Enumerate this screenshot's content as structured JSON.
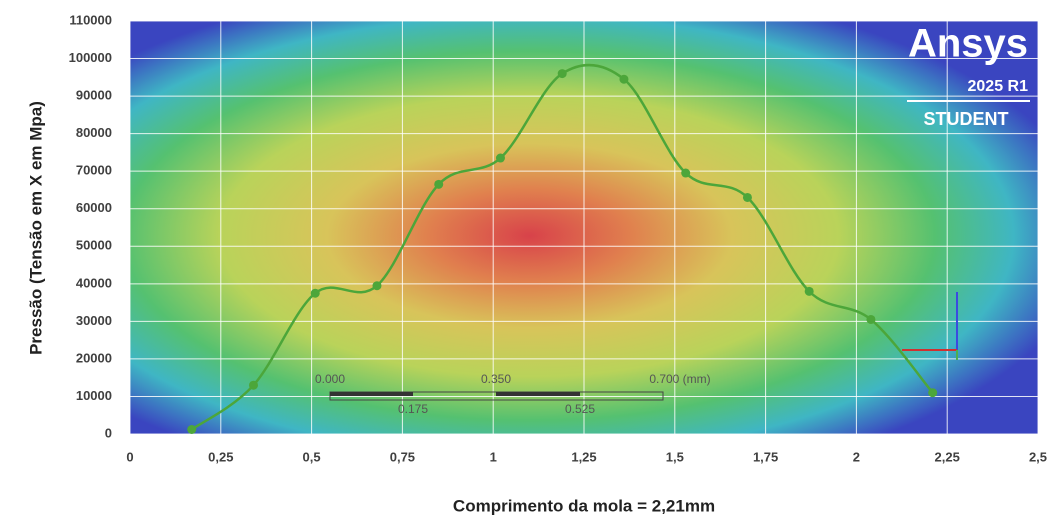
{
  "chart_data": {
    "type": "line",
    "x_label": "Comprimento da mola = 2,21mm",
    "y_label": "Pressão (Tensão em X em Mpa)",
    "x": [
      0.17,
      0.34,
      0.51,
      0.68,
      0.85,
      1.02,
      1.19,
      1.36,
      1.53,
      1.7,
      1.87,
      2.04,
      2.21
    ],
    "series": [
      {
        "color": "#4ca63a",
        "values": [
          1200,
          13000,
          37500,
          39500,
          66500,
          73500,
          96000,
          94500,
          69500,
          63000,
          38000,
          30500,
          11000
        ]
      }
    ],
    "xlim": [
      0,
      2.5
    ],
    "xticks": [
      0,
      {
        "value": 0.25,
        "label": "0,25"
      },
      {
        "value": 0.5,
        "label": "0,5"
      },
      {
        "value": 0.75,
        "label": "0,75"
      },
      1,
      {
        "value": 1.25,
        "label": "1,25"
      },
      {
        "value": 1.5,
        "label": "1,5"
      },
      {
        "value": 1.75,
        "label": "1,75"
      },
      2,
      {
        "value": 2.25,
        "label": "2,25"
      },
      {
        "value": 2.5,
        "label": "2,5"
      }
    ],
    "ylim": [
      0,
      110000
    ],
    "yticks": [
      0,
      10000,
      20000,
      30000,
      40000,
      50000,
      60000,
      70000,
      80000,
      90000,
      100000,
      110000
    ],
    "grid": true
  },
  "overlay": {
    "logo": "Ansys",
    "version": "2025 R1",
    "edition": "STUDENT",
    "scale_top": [
      "0.000",
      "0.350",
      "0.700 (mm)"
    ],
    "scale_bottom": [
      "0.175",
      "0.525"
    ]
  }
}
